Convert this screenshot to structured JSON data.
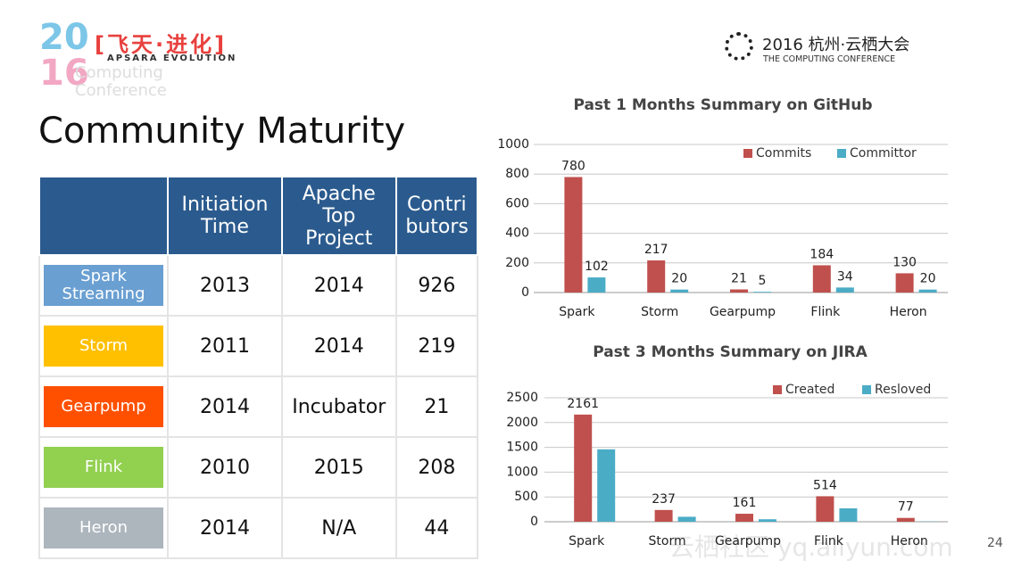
{
  "header": {
    "logo_year_top": "20",
    "logo_year_bottom": "16",
    "logo_title": "[飞天·进化]",
    "logo_subtitle": "APSARA EVOLUTION",
    "logo_faint": "Computing Conference",
    "conference": "2016 杭州·云栖大会",
    "conference_en": "THE COMPUTING CONFERENCE"
  },
  "title": "Community Maturity",
  "table": {
    "columns": [
      "Initiation Time",
      "Apache Top Project",
      "Contri butors"
    ],
    "rows": [
      {
        "name": "Spark Streaming",
        "color": "#6a9fd2",
        "cells": [
          "2013",
          "2014",
          "926"
        ]
      },
      {
        "name": "Storm",
        "color": "#ffc000",
        "cells": [
          "2011",
          "2014",
          "219"
        ]
      },
      {
        "name": "Gearpump",
        "color": "#ff5000",
        "cells": [
          "2014",
          "Incubator",
          "21"
        ]
      },
      {
        "name": "Flink",
        "color": "#92d050",
        "cells": [
          "2010",
          "2015",
          "208"
        ]
      },
      {
        "name": "Heron",
        "color": "#adb5bd",
        "cells": [
          "2014",
          "N/A",
          "44"
        ]
      }
    ]
  },
  "chart_data": [
    {
      "type": "bar",
      "title": "Past 1 Months Summary on GitHub",
      "categories": [
        "Spark",
        "Storm",
        "Gearpump",
        "Flink",
        "Heron"
      ],
      "series": [
        {
          "name": "Commits",
          "color": "#c0504d",
          "values": [
            780,
            217,
            21,
            184,
            130
          ],
          "show_labels": true
        },
        {
          "name": "Committor",
          "color": "#4bacc6",
          "values": [
            102,
            20,
            5,
            34,
            20
          ],
          "show_labels": true
        }
      ],
      "ylim": [
        0,
        1000
      ],
      "yticks": [
        0,
        200,
        400,
        600,
        800,
        1000
      ],
      "grid": true,
      "legend": "top-right"
    },
    {
      "type": "bar",
      "title": "Past 3 Months Summary on JIRA",
      "categories": [
        "Spark",
        "Storm",
        "Gearpump",
        "Flink",
        "Heron"
      ],
      "series": [
        {
          "name": "Created",
          "color": "#c0504d",
          "values": [
            2161,
            237,
            161,
            514,
            77
          ],
          "show_labels": true
        },
        {
          "name": "Resloved",
          "color": "#4bacc6",
          "values": [
            1460,
            100,
            50,
            270,
            5
          ],
          "show_labels": false
        }
      ],
      "ylim": [
        0,
        2500
      ],
      "yticks": [
        0,
        500,
        1000,
        1500,
        2000,
        2500
      ],
      "grid": true,
      "legend": "top-right"
    }
  ],
  "page_number": "24",
  "watermark": "云栖社区 yq.aliyun.com"
}
